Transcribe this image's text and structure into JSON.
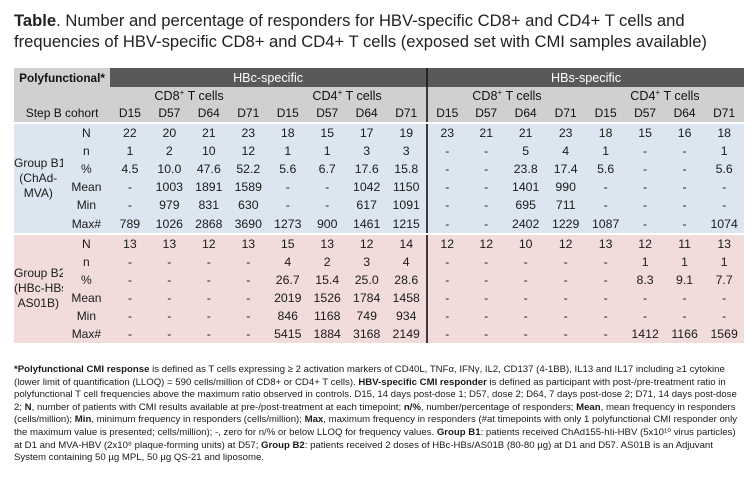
{
  "title": {
    "label": "Table",
    "text": ". Number and percentage of responders for HBV-specific CD8+ and CD4+ T cells and frequencies of HBV-specific CD8+ and CD4+ T cells (exposed set with CMI samples available)"
  },
  "header": {
    "corner": "Polyfunctional*",
    "groups": [
      "HBc-specific",
      "HBs-specific"
    ],
    "subgroups": [
      "CD8",
      "CD4",
      "CD8",
      "CD4"
    ],
    "subgroup_sup": "+",
    "subgroup_suffix": " T cells",
    "cohort_label": "Step B cohort",
    "timepoints": [
      "D15",
      "D57",
      "D64",
      "D71",
      "D15",
      "D57",
      "D64",
      "D71",
      "D15",
      "D57",
      "D64",
      "D71",
      "D15",
      "D57",
      "D64",
      "D71"
    ]
  },
  "groups": [
    {
      "name": "Group B1",
      "sub_lines": [
        "(ChAd-",
        "MVA)"
      ],
      "rows": [
        {
          "label": "N",
          "cells": [
            "22",
            "20",
            "21",
            "23",
            "18",
            "15",
            "17",
            "19",
            "23",
            "21",
            "21",
            "23",
            "18",
            "15",
            "16",
            "18"
          ]
        },
        {
          "label": "n",
          "cells": [
            "1",
            "2",
            "10",
            "12",
            "1",
            "1",
            "3",
            "3",
            "-",
            "-",
            "5",
            "4",
            "1",
            "-",
            "-",
            "1"
          ]
        },
        {
          "label": "%",
          "cells": [
            "4.5",
            "10.0",
            "47.6",
            "52.2",
            "5.6",
            "6.7",
            "17.6",
            "15.8",
            "-",
            "-",
            "23.8",
            "17.4",
            "5.6",
            "-",
            "-",
            "5.6"
          ]
        },
        {
          "label": "Mean",
          "cells": [
            "-",
            "1003",
            "1891",
            "1589",
            "-",
            "-",
            "1042",
            "1150",
            "-",
            "-",
            "1401",
            "990",
            "-",
            "-",
            "-",
            "-"
          ]
        },
        {
          "label": "Min",
          "cells": [
            "-",
            "979",
            "831",
            "630",
            "-",
            "-",
            "617",
            "1091",
            "-",
            "-",
            "695",
            "711",
            "-",
            "-",
            "-",
            "-"
          ]
        },
        {
          "label": "Max#",
          "cells": [
            "789",
            "1026",
            "2868",
            "3690",
            "1273",
            "900",
            "1461",
            "1215",
            "-",
            "-",
            "2402",
            "1229",
            "1087",
            "-",
            "-",
            "1074"
          ]
        }
      ]
    },
    {
      "name": "Group B2",
      "sub_lines": [
        "(HBc-HBs/",
        "AS01B)"
      ],
      "rows": [
        {
          "label": "N",
          "cells": [
            "13",
            "13",
            "12",
            "13",
            "15",
            "13",
            "12",
            "14",
            "12",
            "12",
            "10",
            "12",
            "13",
            "12",
            "11",
            "13"
          ]
        },
        {
          "label": "n",
          "cells": [
            "-",
            "-",
            "-",
            "-",
            "4",
            "2",
            "3",
            "4",
            "-",
            "-",
            "-",
            "-",
            "-",
            "1",
            "1",
            "1"
          ]
        },
        {
          "label": "%",
          "cells": [
            "-",
            "-",
            "-",
            "-",
            "26.7",
            "15.4",
            "25.0",
            "28.6",
            "-",
            "-",
            "-",
            "-",
            "-",
            "8.3",
            "9.1",
            "7.7"
          ]
        },
        {
          "label": "Mean",
          "cells": [
            "-",
            "-",
            "-",
            "-",
            "2019",
            "1526",
            "1784",
            "1458",
            "-",
            "-",
            "-",
            "-",
            "-",
            "-",
            "-",
            "-"
          ]
        },
        {
          "label": "Min",
          "cells": [
            "-",
            "-",
            "-",
            "-",
            "846",
            "1168",
            "749",
            "934",
            "-",
            "-",
            "-",
            "-",
            "-",
            "-",
            "-",
            "-"
          ]
        },
        {
          "label": "Max#",
          "cells": [
            "-",
            "-",
            "-",
            "-",
            "5415",
            "1884",
            "3168",
            "2149",
            "-",
            "-",
            "-",
            "-",
            "-",
            "1412",
            "1166",
            "1569"
          ]
        }
      ]
    }
  ],
  "footnote": [
    {
      "b": true,
      "t": "*Polyfunctional CMI response"
    },
    {
      "b": false,
      "t": " is defined as T cells expressing ≥ 2 activation markers of CD40L, TNFα, IFNγ, IL2, CD137 (4-1BB), IL13 and IL17 including ≥1 cytokine (lower limit of quantification (LLOQ) = 590 cells/million of CD8+ or CD4+ T cells). "
    },
    {
      "b": true,
      "t": "HBV-specific CMI responder"
    },
    {
      "b": false,
      "t": " is defined as participant with post-/pre-treatment ratio in polyfunctional T cell frequencies above the maximum ratio observed in controls. D15, 14 days post-dose 1; D57, dose 2; D64, 7 days post-dose 2; D71, 14 days post-dose 2; "
    },
    {
      "b": true,
      "t": "N"
    },
    {
      "b": false,
      "t": ", number of patients with CMI results available at pre-/post-treatment at each timepoint; "
    },
    {
      "b": true,
      "t": "n/%"
    },
    {
      "b": false,
      "t": ", number/percentage of responders; "
    },
    {
      "b": true,
      "t": "Mean"
    },
    {
      "b": false,
      "t": ", mean frequency in responders (cells/million); "
    },
    {
      "b": true,
      "t": "Min"
    },
    {
      "b": false,
      "t": ", minimum frequency in responders (cells/million); "
    },
    {
      "b": true,
      "t": "Max"
    },
    {
      "b": false,
      "t": ", maximum frequency in responders (#at timepoints with only 1 polyfunctional CMI responder only the maximum value is presented; cells/million); -, zero for n/% or below LLOQ for frequency values. "
    },
    {
      "b": true,
      "t": "Group B1"
    },
    {
      "b": false,
      "t": ": patients received ChAd155-hIi-HBV (5x10¹⁰ virus particles) at D1 and MVA-HBV (2x10⁸ plaque-forming units) at D57; "
    },
    {
      "b": true,
      "t": "Group B2"
    },
    {
      "b": false,
      "t": ": patients received 2 doses of HBc-HBs/AS01B (80-80 µg) at D1 and D57. AS01B is an Adjuvant System containing 50 µg MPL, 50 µg QS-21 and liposome."
    }
  ]
}
